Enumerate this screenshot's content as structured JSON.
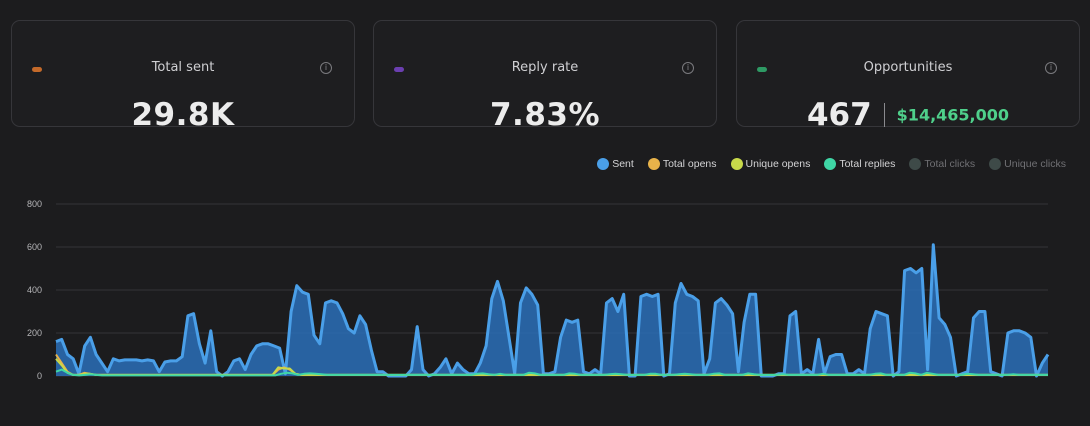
{
  "cards": [
    {
      "label": "Total sent",
      "value": "29.8K",
      "dot_color": "#c46a2a"
    },
    {
      "label": "Reply rate",
      "value": "7.83%",
      "dot_color": "#6b3fb0"
    },
    {
      "label": "Opportunities",
      "value": "467",
      "secondary_value": "$14,465,000",
      "dot_color": "#2e9a64"
    }
  ],
  "info_icon_glyph": "i",
  "legend": [
    {
      "name": "Sent",
      "color": "#4a9fe8",
      "active": true
    },
    {
      "name": "Total opens",
      "color": "#e8b34a",
      "active": true
    },
    {
      "name": "Unique opens",
      "color": "#c8d94a",
      "active": true
    },
    {
      "name": "Total replies",
      "color": "#3fd6a6",
      "active": true
    },
    {
      "name": "Total clicks",
      "color": "#3e4a48",
      "active": false
    },
    {
      "name": "Unique clicks",
      "color": "#3e4a48",
      "active": false
    }
  ],
  "chart_data": {
    "type": "area",
    "ylim": [
      0,
      800
    ],
    "yticks": [
      0,
      200,
      400,
      600,
      800
    ],
    "grid": true,
    "legend_position": "top-right",
    "series": [
      {
        "name": "Sent",
        "color": "#4a9fe8",
        "values": [
          160,
          170,
          100,
          80,
          10,
          140,
          180,
          100,
          60,
          20,
          80,
          70,
          75,
          75,
          75,
          70,
          75,
          70,
          20,
          65,
          70,
          70,
          90,
          280,
          290,
          150,
          60,
          210,
          20,
          0,
          20,
          70,
          80,
          30,
          100,
          140,
          150,
          150,
          140,
          130,
          10,
          300,
          420,
          390,
          380,
          190,
          150,
          340,
          350,
          340,
          290,
          220,
          200,
          280,
          240,
          120,
          20,
          20,
          0,
          0,
          0,
          0,
          30,
          230,
          30,
          0,
          10,
          40,
          80,
          10,
          60,
          30,
          10,
          10,
          60,
          140,
          360,
          440,
          350,
          180,
          10,
          340,
          410,
          380,
          330,
          10,
          10,
          20,
          180,
          260,
          250,
          260,
          20,
          10,
          30,
          10,
          340,
          360,
          300,
          380,
          0,
          0,
          370,
          380,
          370,
          380,
          0,
          10,
          340,
          430,
          380,
          370,
          350,
          10,
          80,
          340,
          360,
          330,
          290,
          20,
          250,
          380,
          380,
          0,
          0,
          0,
          10,
          10,
          280,
          300,
          10,
          30,
          10,
          170,
          10,
          90,
          100,
          100,
          10,
          10,
          30,
          10,
          220,
          300,
          290,
          280,
          0,
          20,
          490,
          500,
          480,
          500,
          30,
          610,
          270,
          240,
          180,
          0,
          10,
          20,
          270,
          300,
          300,
          20,
          10,
          0,
          200,
          210,
          210,
          200,
          180,
          0,
          60,
          100
        ]
      },
      {
        "name": "Total opens",
        "color": "#e8b34a",
        "values": [
          100,
          60,
          20,
          5,
          5,
          15,
          10,
          5,
          5,
          5,
          5,
          5,
          5,
          5,
          5,
          5,
          5,
          5,
          5,
          5,
          5,
          5,
          5,
          5,
          5,
          5,
          5,
          5,
          5,
          5,
          5,
          5,
          5,
          5,
          5,
          5,
          5,
          5,
          5,
          30,
          40,
          30,
          10,
          5,
          5,
          5,
          5,
          5,
          5,
          5,
          5,
          5,
          5,
          5,
          5,
          5,
          5,
          5,
          5,
          5,
          5,
          5,
          5,
          5,
          5,
          5,
          5,
          5,
          5,
          5,
          5,
          5,
          5,
          5,
          5,
          5,
          5,
          5,
          5,
          5,
          5,
          5,
          5,
          5,
          5,
          5,
          5,
          5,
          5,
          5,
          5,
          5,
          5,
          5,
          5,
          5,
          5,
          5,
          5,
          5,
          5,
          5,
          5,
          5,
          5,
          5,
          5,
          5,
          5,
          5,
          5,
          5,
          5,
          5,
          5,
          5,
          5,
          5,
          5,
          5,
          5,
          5,
          5,
          5,
          5,
          5,
          5,
          5,
          5,
          5,
          5,
          5,
          5,
          5,
          5,
          5,
          5,
          5,
          5,
          5,
          5,
          5,
          5,
          5,
          5,
          5,
          5,
          5,
          5,
          5,
          5,
          5,
          5,
          5,
          5,
          5,
          5,
          5,
          5,
          5,
          5,
          5,
          5,
          5,
          5,
          5,
          5,
          5,
          5,
          5,
          5,
          5,
          5,
          5,
          5
        ]
      },
      {
        "name": "Unique opens",
        "color": "#c8d94a",
        "values": [
          80,
          50,
          15,
          5,
          5,
          10,
          10,
          5,
          5,
          5,
          5,
          5,
          5,
          5,
          5,
          5,
          5,
          5,
          5,
          5,
          5,
          5,
          5,
          5,
          5,
          5,
          5,
          5,
          5,
          5,
          5,
          5,
          5,
          5,
          5,
          5,
          5,
          5,
          5,
          40,
          35,
          35,
          10,
          5,
          5,
          5,
          5,
          5,
          5,
          5,
          5,
          5,
          5,
          5,
          5,
          5,
          5,
          5,
          5,
          5,
          5,
          5,
          5,
          5,
          5,
          5,
          5,
          5,
          5,
          5,
          5,
          5,
          5,
          5,
          5,
          5,
          5,
          5,
          5,
          5,
          5,
          5,
          5,
          5,
          5,
          5,
          5,
          5,
          5,
          5,
          5,
          5,
          5,
          5,
          5,
          5,
          5,
          5,
          5,
          5,
          5,
          5,
          5,
          5,
          5,
          5,
          5,
          5,
          5,
          5,
          5,
          5,
          5,
          5,
          5,
          5,
          5,
          5,
          5,
          5,
          5,
          5,
          5,
          5,
          5,
          5,
          5,
          5,
          5,
          5,
          5,
          5,
          5,
          5,
          5,
          5,
          5,
          5,
          5,
          5,
          5,
          5,
          5,
          5,
          5,
          5,
          5,
          5,
          5,
          5,
          5,
          5,
          5,
          5,
          5,
          5,
          5,
          5,
          5,
          5,
          5,
          5,
          5,
          5,
          5,
          5,
          5,
          5,
          5,
          5,
          5,
          5,
          5,
          5,
          5
        ]
      },
      {
        "name": "Total replies",
        "color": "#3fd6a6",
        "values": [
          20,
          30,
          15,
          5,
          3,
          5,
          8,
          5,
          3,
          3,
          3,
          3,
          3,
          3,
          3,
          3,
          3,
          3,
          3,
          3,
          3,
          3,
          3,
          3,
          3,
          3,
          3,
          3,
          3,
          3,
          3,
          3,
          3,
          3,
          3,
          3,
          3,
          3,
          3,
          10,
          15,
          12,
          5,
          10,
          12,
          10,
          8,
          5,
          5,
          5,
          5,
          5,
          5,
          5,
          5,
          5,
          5,
          5,
          5,
          5,
          5,
          5,
          5,
          5,
          5,
          5,
          5,
          5,
          5,
          5,
          5,
          5,
          5,
          10,
          12,
          8,
          5,
          10,
          5,
          5,
          5,
          5,
          15,
          12,
          5,
          5,
          5,
          5,
          5,
          12,
          10,
          5,
          5,
          5,
          5,
          5,
          8,
          10,
          8,
          5,
          5,
          5,
          5,
          10,
          10,
          5,
          5,
          5,
          8,
          10,
          8,
          5,
          5,
          5,
          10,
          12,
          5,
          5,
          5,
          5,
          12,
          8,
          5,
          5,
          5,
          5,
          8,
          5,
          5,
          5,
          5,
          5,
          5,
          10,
          5,
          5,
          5,
          5,
          5,
          5,
          5,
          5,
          10,
          12,
          5,
          5,
          5,
          5,
          15,
          12,
          5,
          15,
          10,
          5,
          5,
          5,
          5,
          5,
          10,
          8,
          5,
          5,
          5,
          5,
          5,
          5,
          8,
          5,
          5,
          5,
          5,
          5,
          5
        ]
      }
    ]
  }
}
